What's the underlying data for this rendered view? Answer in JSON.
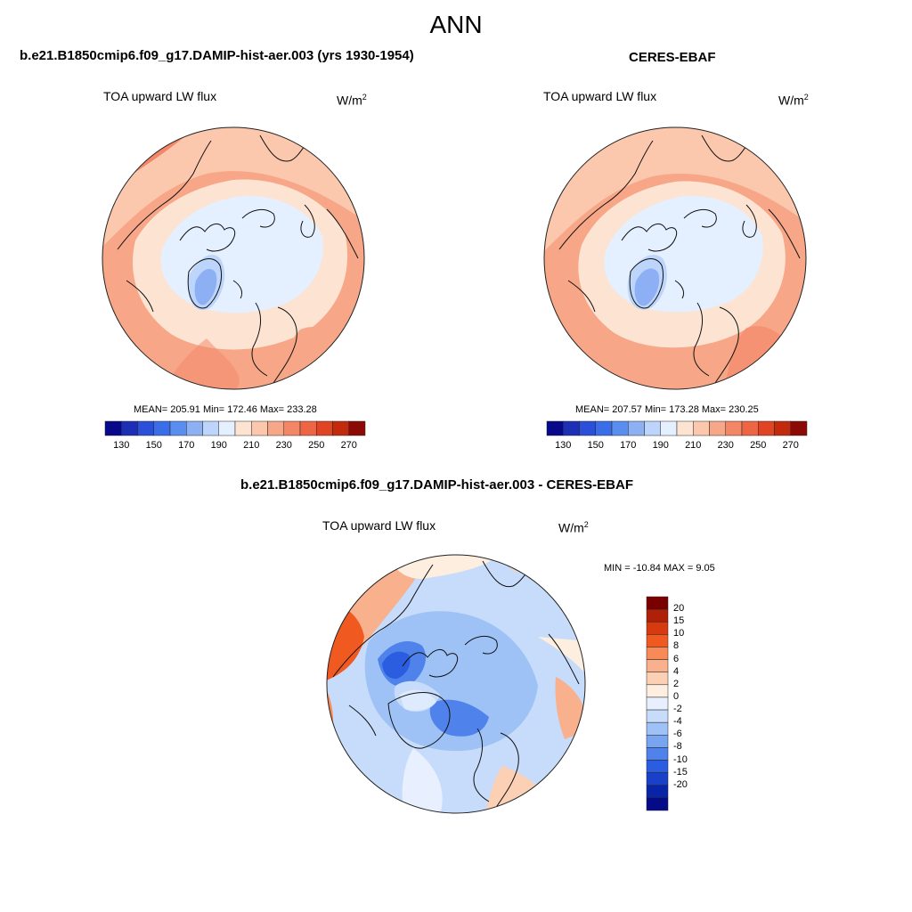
{
  "page": {
    "title": "ANN"
  },
  "panels": [
    {
      "title": "b.e21.B1850cmip6.f09_g17.DAMIP-hist-aer.003 (yrs 1930-1954)",
      "variable": "TOA upward LW flux",
      "units_base": "W/m",
      "units_exp": "2",
      "stats": "MEAN= 205.91  Min= 172.46  Max= 233.28",
      "colorbar": {
        "colors": [
          "#08088a",
          "#1c2fb5",
          "#2b4fd8",
          "#3a6ee8",
          "#5a8df0",
          "#8db0f5",
          "#bdd5fa",
          "#e4efff",
          "#fde4d2",
          "#fbc7ad",
          "#f7a688",
          "#f28666",
          "#ee6544",
          "#e04424",
          "#c22a0e",
          "#8c0a05"
        ],
        "labels": [
          "130",
          "150",
          "170",
          "190",
          "210",
          "230",
          "250",
          "270"
        ]
      },
      "map": {
        "type": "polar-stereographic",
        "hemisphere": "north"
      }
    },
    {
      "title": "CERES-EBAF",
      "variable": "TOA upward LW flux",
      "units_base": "W/m",
      "units_exp": "2",
      "stats": "MEAN= 207.57  Min= 173.28  Max= 230.25",
      "colorbar": {
        "colors": [
          "#08088a",
          "#1c2fb5",
          "#2b4fd8",
          "#3a6ee8",
          "#5a8df0",
          "#8db0f5",
          "#bdd5fa",
          "#e4efff",
          "#fde4d2",
          "#fbc7ad",
          "#f7a688",
          "#f28666",
          "#ee6544",
          "#e04424",
          "#c22a0e",
          "#8c0a05"
        ],
        "labels": [
          "130",
          "150",
          "170",
          "190",
          "210",
          "230",
          "250",
          "270"
        ]
      },
      "map": {
        "type": "polar-stereographic",
        "hemisphere": "north"
      }
    },
    {
      "title": "b.e21.B1850cmip6.f09_g17.DAMIP-hist-aer.003 - CERES-EBAF",
      "variable": "TOA upward LW flux",
      "units_base": "W/m",
      "units_exp": "2",
      "stats": "MIN = -10.84 MAX =   9.05",
      "colorbar": {
        "colors": [
          "#7a0000",
          "#b02008",
          "#d83a10",
          "#f05a20",
          "#f88a58",
          "#f9b08c",
          "#fbd0b4",
          "#fdeee0",
          "#e8f0ff",
          "#c6dcfa",
          "#9ec2f6",
          "#78a4f0",
          "#4f82ea",
          "#2a5de0",
          "#1a3fc8",
          "#0a24a8",
          "#040a88"
        ],
        "labels": [
          "20",
          "15",
          "10",
          "8",
          "6",
          "4",
          "2",
          "0",
          "-2",
          "-4",
          "-6",
          "-8",
          "-10",
          "-15",
          "-20"
        ]
      },
      "map": {
        "type": "polar-stereographic",
        "hemisphere": "north"
      }
    }
  ]
}
